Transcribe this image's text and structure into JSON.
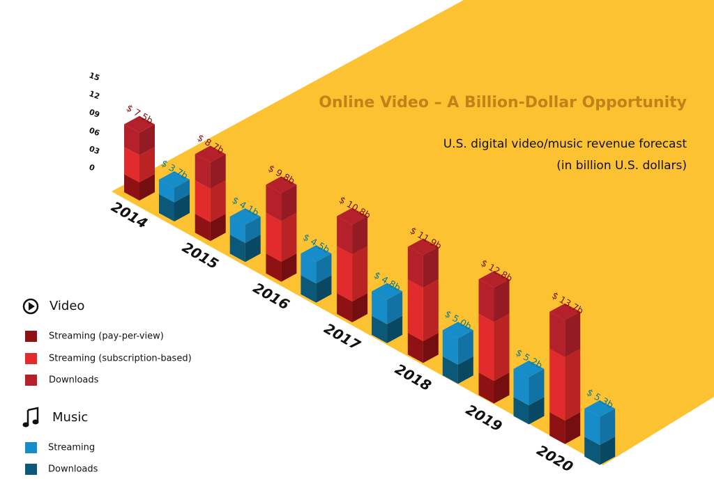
{
  "chart_data": {
    "type": "bar",
    "title": "Online Video – A Billion-Dollar Opportunity",
    "subtitle": [
      "U.S. digital video/music revenue forecast",
      "(in billion U.S. dollars)"
    ],
    "categories": [
      "2014",
      "2015",
      "2016",
      "2017",
      "2018",
      "2019",
      "2020"
    ],
    "ylim": [
      0,
      15
    ],
    "yticks": [
      0,
      {
        "value": 3,
        "label": "03"
      },
      {
        "value": 6,
        "label": "06"
      },
      {
        "value": 9,
        "label": "09"
      },
      12,
      15
    ],
    "groups": [
      {
        "name": "Video",
        "label_color": "#7a1010",
        "values": [
          7.5,
          8.7,
          9.8,
          10.8,
          11.9,
          12.8,
          13.7
        ],
        "value_labels": [
          "$ 7.5b",
          "$ 8.7b",
          "$ 9.8b",
          "$ 10.8b",
          "$ 11.9b",
          "$ 12.8b",
          "$ 13.7b"
        ],
        "series": [
          {
            "name": "Streaming (pay-per-view)",
            "color": "#8e1214",
            "values": [
              2.0,
              2.1,
              2.2,
              2.3,
              2.4,
              2.5,
              2.6
            ]
          },
          {
            "name": "Streaming (subscription-based)",
            "color": "#e22b2d",
            "values": [
              3.0,
              3.7,
              4.5,
              5.2,
              5.9,
              6.5,
              7.0
            ]
          },
          {
            "name": "Downloads",
            "color": "#b5212b",
            "values": [
              2.5,
              2.9,
              3.1,
              3.3,
              3.6,
              3.8,
              4.1
            ]
          }
        ]
      },
      {
        "name": "Music",
        "label_color": "#0d7a8a",
        "values": [
          3.7,
          4.1,
          4.5,
          4.8,
          5.0,
          5.2,
          5.3
        ],
        "value_labels": [
          "$ 3.7b",
          "$ 4.1b",
          "$ 4.5b",
          "$ 4.8b",
          "$ 5.0b",
          "$ 5.2b",
          "$ 5.3b"
        ],
        "series": [
          {
            "name": "Downloads",
            "color": "#0c5878",
            "values": [
              2.1,
              2.1,
              2.1,
              2.1,
              2.1,
              2.1,
              2.2
            ]
          },
          {
            "name": "Streaming",
            "color": "#168cc8",
            "values": [
              1.6,
              2.0,
              2.4,
              2.7,
              2.9,
              3.1,
              3.1
            ]
          }
        ]
      }
    ]
  }
}
